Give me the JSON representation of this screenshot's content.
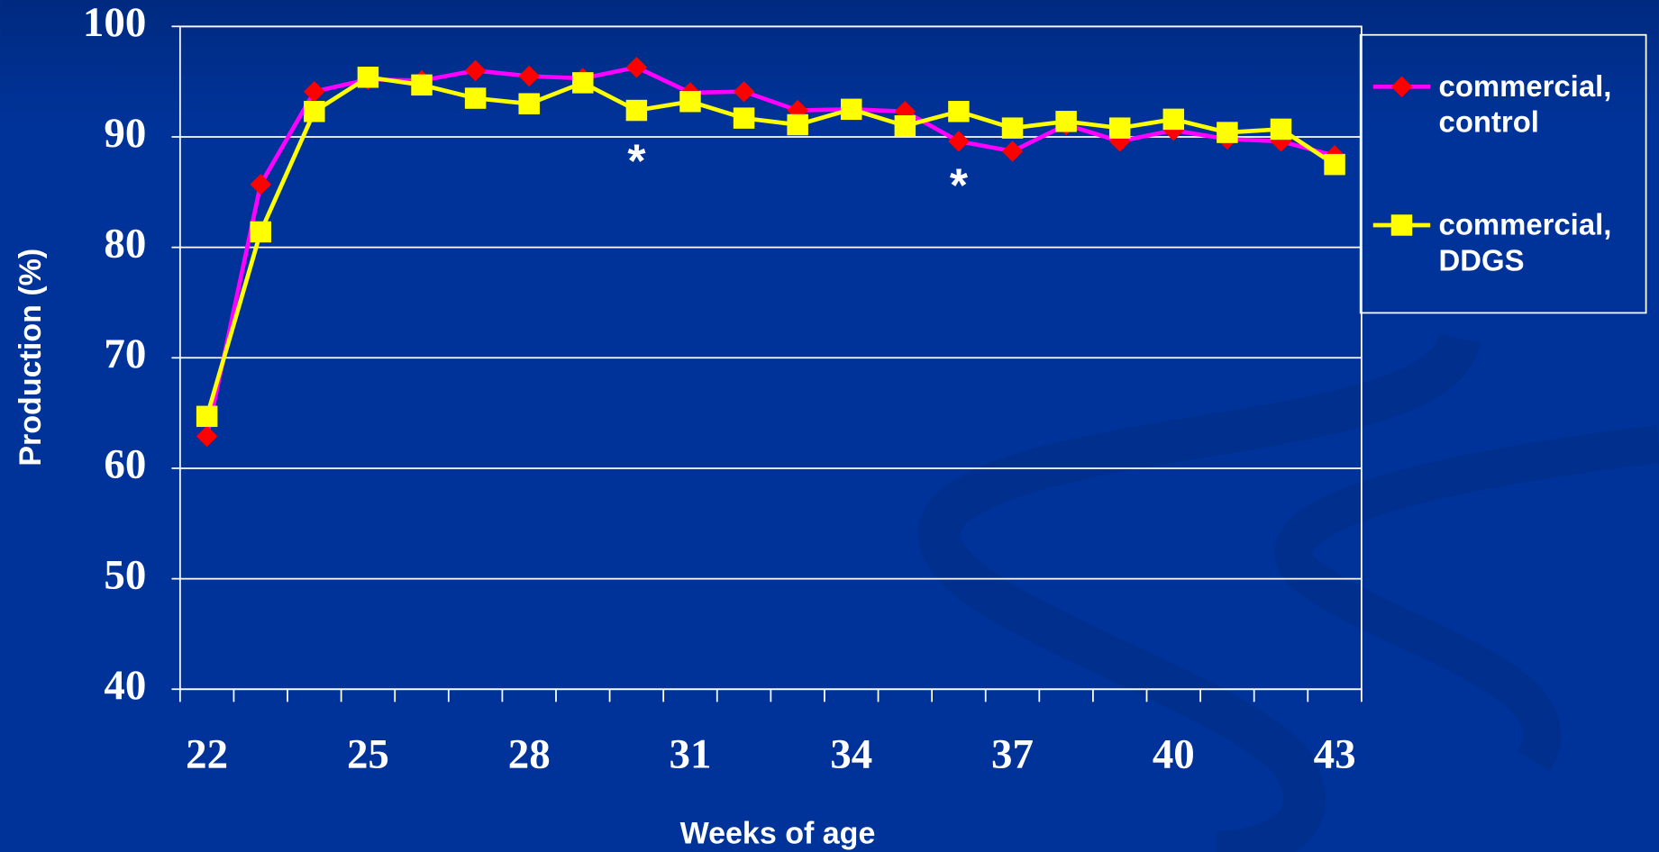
{
  "chart_data": {
    "type": "line",
    "x_label": "Weeks of age",
    "y_label": "Production (%)",
    "x": [
      22,
      23,
      24,
      25,
      26,
      27,
      28,
      29,
      30,
      31,
      32,
      33,
      34,
      35,
      36,
      37,
      38,
      39,
      40,
      41,
      42,
      43
    ],
    "series": [
      {
        "name": "commercial, control",
        "color": "#ff00ff",
        "marker_color": "#ff0000",
        "marker": "diamond",
        "values": [
          62.9,
          85.7,
          94.1,
          95.2,
          95.1,
          96.0,
          95.5,
          95.3,
          96.3,
          94.0,
          94.1,
          92.4,
          92.5,
          92.3,
          89.6,
          88.7,
          91.1,
          89.6,
          90.6,
          89.8,
          89.6,
          88.3
        ]
      },
      {
        "name": "commercial, DDGS",
        "color": "#ffff00",
        "marker_color": "#ffff00",
        "marker": "square",
        "values": [
          64.7,
          81.4,
          92.3,
          95.4,
          94.7,
          93.5,
          93.0,
          94.9,
          92.4,
          93.2,
          91.7,
          91.1,
          92.5,
          91.0,
          92.3,
          90.8,
          91.4,
          90.8,
          91.6,
          90.4,
          90.7,
          87.5
        ]
      }
    ],
    "xlim": [
      21.5,
      43.5
    ],
    "xticks": [
      22,
      25,
      28,
      31,
      34,
      37,
      40,
      43
    ],
    "ylim": [
      40,
      100
    ],
    "yticks": [
      40,
      50,
      60,
      70,
      80,
      90,
      100
    ],
    "grid": true,
    "legend": "right",
    "annotations": [
      {
        "text": "*",
        "x": 30,
        "y": 87.5
      },
      {
        "text": "*",
        "x": 36,
        "y": 85.3
      }
    ]
  }
}
